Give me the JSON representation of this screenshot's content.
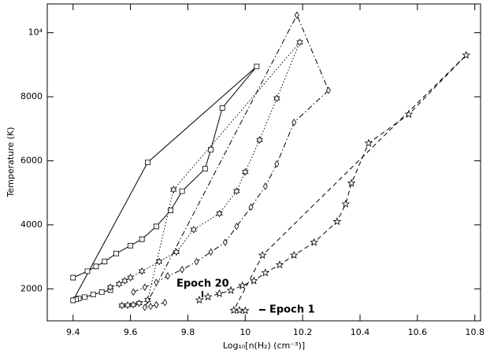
{
  "chart_data": {
    "type": "line",
    "xlabel": "Log₁₀[n(H₂) (cm⁻³)]",
    "ylabel": "Temperature (K)",
    "xlim": [
      9.31,
      10.82
    ],
    "ylim": [
      1000,
      10900
    ],
    "xticks": [
      9.4,
      9.6,
      9.8,
      10,
      10.2,
      10.4,
      10.6,
      10.8
    ],
    "yticks": [
      2000,
      4000,
      6000,
      8000,
      {
        "value": 10000,
        "label": "10⁴"
      }
    ],
    "series": [
      {
        "color": "#000000",
        "line": "solid",
        "marker": "square",
        "x": [
          9.53,
          9.5,
          9.47,
          9.44,
          9.42,
          9.41,
          9.4,
          9.66,
          10.04,
          9.92,
          9.88,
          9.86,
          9.78,
          9.74,
          9.69,
          9.64,
          9.6,
          9.55,
          9.51,
          9.48,
          9.45,
          9.4
        ],
        "values": [
          1960,
          1900,
          1820,
          1740,
          1700,
          1670,
          1640,
          5950,
          8950,
          7650,
          6350,
          5750,
          5050,
          4450,
          3950,
          3550,
          3350,
          3100,
          2850,
          2700,
          2550,
          2350
        ]
      },
      {
        "color": "#000000",
        "line": "dotted",
        "marker": "hexagram",
        "x": [
          9.53,
          9.56,
          9.58,
          9.6,
          9.64,
          9.7,
          9.76,
          9.82,
          9.91,
          9.97,
          10.0,
          10.05,
          10.11,
          10.19,
          9.75,
          9.66,
          9.63,
          9.61,
          9.59,
          9.57
        ],
        "values": [
          2050,
          2150,
          2250,
          2350,
          2550,
          2850,
          3150,
          3850,
          4350,
          5050,
          5650,
          6650,
          7950,
          9700,
          5100,
          1650,
          1550,
          1500,
          1490,
          1480
        ]
      },
      {
        "color": "#000000",
        "line": "dashdot",
        "marker": "diamond",
        "x": [
          9.61,
          9.65,
          9.69,
          9.73,
          9.78,
          9.83,
          9.88,
          9.93,
          9.97,
          10.02,
          10.07,
          10.11,
          10.17,
          10.29,
          10.18,
          9.65,
          9.67,
          9.69,
          9.72
        ],
        "values": [
          1900,
          2050,
          2200,
          2400,
          2600,
          2850,
          3150,
          3450,
          3950,
          4550,
          5200,
          5900,
          7200,
          8200,
          10550,
          1420,
          1450,
          1500,
          1570
        ]
      },
      {
        "color": "#000000",
        "line": "dashed",
        "marker": "star",
        "x": [
          9.84,
          9.87,
          9.91,
          9.95,
          9.99,
          10.03,
          10.07,
          10.12,
          10.17,
          10.24,
          10.32,
          10.35,
          10.37,
          10.43,
          10.57,
          10.77,
          10.06,
          9.96,
          9.98,
          10.0
        ],
        "values": [
          1650,
          1750,
          1850,
          1950,
          2100,
          2250,
          2500,
          2750,
          3050,
          3450,
          4100,
          4650,
          5300,
          6550,
          7450,
          9300,
          3050,
          1330,
          1330,
          1320
        ]
      }
    ],
    "annotations": [
      "Epoch 20",
      "Epoch 1"
    ]
  }
}
